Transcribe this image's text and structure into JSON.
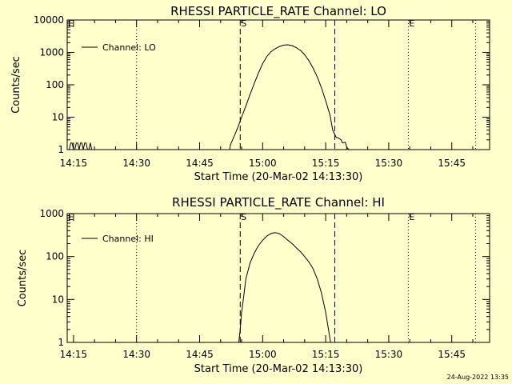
{
  "footer": {
    "timestamp": "24-Aug-2022 13:35"
  },
  "colors": {
    "background": "#ffffcc",
    "foreground": "#000000"
  },
  "chart_data": [
    {
      "type": "line",
      "title": "RHESSI PARTICLE_RATE Channel: LO",
      "xlabel": "Start Time (20-Mar-02 14:13:30)",
      "ylabel": "Counts/sec",
      "yscale": "log",
      "ylim": [
        1,
        10000
      ],
      "xlim": [
        "14:13:30",
        "15:54:00"
      ],
      "xticks": [
        "14:15",
        "14:30",
        "14:45",
        "15:00",
        "15:15",
        "15:30",
        "15:45"
      ],
      "yticks": [
        "1",
        "10",
        "100",
        "1000",
        "10000"
      ],
      "legend": {
        "entries": [
          "Channel: LO"
        ],
        "position": "top-left"
      },
      "markers": [
        {
          "label": "E",
          "time": "14:13:30",
          "style": "dotted"
        },
        {
          "label": "",
          "time": "14:30",
          "style": "dotted"
        },
        {
          "label": "S",
          "time": "14:54:40",
          "style": "dashed"
        },
        {
          "label": "",
          "time": "15:17:10",
          "style": "dashed"
        },
        {
          "label": "E",
          "time": "15:34:40",
          "style": "dotted"
        },
        {
          "label": "",
          "time": "15:50:40",
          "style": "dotted"
        }
      ],
      "series": [
        {
          "name": "Channel: LO",
          "segments": [
            [
              [
                "14:14:00",
                1
              ],
              [
                "14:14:20",
                1.6
              ],
              [
                "14:14:40",
                1.6
              ],
              [
                "14:15:00",
                1
              ],
              [
                "14:15:20",
                1
              ],
              [
                "14:15:40",
                1.6
              ],
              [
                "14:16:00",
                1.6
              ],
              [
                "14:16:20",
                1
              ],
              [
                "14:16:40",
                1.6
              ],
              [
                "14:17:00",
                1.6
              ],
              [
                "14:17:20",
                1
              ],
              [
                "14:17:40",
                1.6
              ],
              [
                "14:18:00",
                1.6
              ],
              [
                "14:18:20",
                1
              ],
              [
                "14:18:40",
                1
              ],
              [
                "14:19:00",
                1.6
              ],
              [
                "14:19:20",
                1
              ]
            ],
            [
              [
                "14:52:10",
                1
              ],
              [
                "14:52:20",
                1.4
              ],
              [
                "14:53:00",
                2.2
              ],
              [
                "14:54:00",
                4.5
              ],
              [
                "14:55:00",
                10
              ],
              [
                "14:56:00",
                22
              ],
              [
                "14:57:00",
                50
              ],
              [
                "14:58:00",
                110
              ],
              [
                "14:59:00",
                230
              ],
              [
                "15:00:00",
                450
              ],
              [
                "15:01:00",
                750
              ],
              [
                "15:02:00",
                1050
              ],
              [
                "15:03:00",
                1300
              ],
              [
                "15:04:00",
                1520
              ],
              [
                "15:05:00",
                1680
              ],
              [
                "15:06:00",
                1720
              ],
              [
                "15:07:00",
                1620
              ],
              [
                "15:08:00",
                1400
              ],
              [
                "15:09:00",
                1150
              ],
              [
                "15:10:00",
                850
              ],
              [
                "15:11:00",
                560
              ],
              [
                "15:12:00",
                330
              ],
              [
                "15:13:00",
                175
              ],
              [
                "15:14:00",
                80
              ],
              [
                "15:15:00",
                32
              ],
              [
                "15:16:00",
                12
              ],
              [
                "15:16:40",
                4
              ],
              [
                "15:17:30",
                2.4
              ],
              [
                "15:18:00",
                2.3
              ],
              [
                "15:18:40",
                2
              ],
              [
                "15:19:00",
                1.6
              ],
              [
                "15:19:40",
                1.7
              ],
              [
                "15:20:00",
                1.2
              ],
              [
                "15:20:30",
                1
              ]
            ]
          ]
        }
      ]
    },
    {
      "type": "line",
      "title": "RHESSI PARTICLE_RATE Channel: HI",
      "xlabel": "Start Time (20-Mar-02 14:13:30)",
      "ylabel": "Counts/sec",
      "yscale": "log",
      "ylim": [
        1,
        1000
      ],
      "xlim": [
        "14:13:30",
        "15:54:00"
      ],
      "xticks": [
        "14:15",
        "14:30",
        "14:45",
        "15:00",
        "15:15",
        "15:30",
        "15:45"
      ],
      "yticks": [
        "1",
        "10",
        "100",
        "1000"
      ],
      "legend": {
        "entries": [
          "Channel: HI"
        ],
        "position": "top-left"
      },
      "markers": [
        {
          "label": "E",
          "time": "14:13:30",
          "style": "dotted"
        },
        {
          "label": "",
          "time": "14:30",
          "style": "dotted"
        },
        {
          "label": "S",
          "time": "14:54:40",
          "style": "dashed"
        },
        {
          "label": "",
          "time": "15:17:10",
          "style": "dashed"
        },
        {
          "label": "E",
          "time": "15:34:40",
          "style": "dotted"
        },
        {
          "label": "",
          "time": "15:50:40",
          "style": "dotted"
        }
      ],
      "series": [
        {
          "name": "Channel: HI",
          "segments": [
            [
              [
                "14:54:20",
                1
              ],
              [
                "14:54:40",
                2
              ],
              [
                "14:55:00",
                5
              ],
              [
                "14:55:30",
                12
              ],
              [
                "14:56:00",
                30
              ],
              [
                "14:57:00",
                70
              ],
              [
                "14:58:00",
                120
              ],
              [
                "14:59:00",
                180
              ],
              [
                "15:00:00",
                240
              ],
              [
                "15:01:00",
                300
              ],
              [
                "15:02:00",
                345
              ],
              [
                "15:03:00",
                360
              ],
              [
                "15:04:00",
                340
              ],
              [
                "15:05:00",
                290
              ],
              [
                "15:06:00",
                240
              ],
              [
                "15:07:00",
                200
              ],
              [
                "15:08:00",
                160
              ],
              [
                "15:09:00",
                130
              ],
              [
                "15:10:00",
                100
              ],
              [
                "15:11:00",
                75
              ],
              [
                "15:12:00",
                52
              ],
              [
                "15:13:00",
                30
              ],
              [
                "15:14:00",
                14
              ],
              [
                "15:15:00",
                5
              ],
              [
                "15:15:40",
                2
              ],
              [
                "15:16:10",
                1
              ]
            ]
          ]
        }
      ]
    }
  ]
}
